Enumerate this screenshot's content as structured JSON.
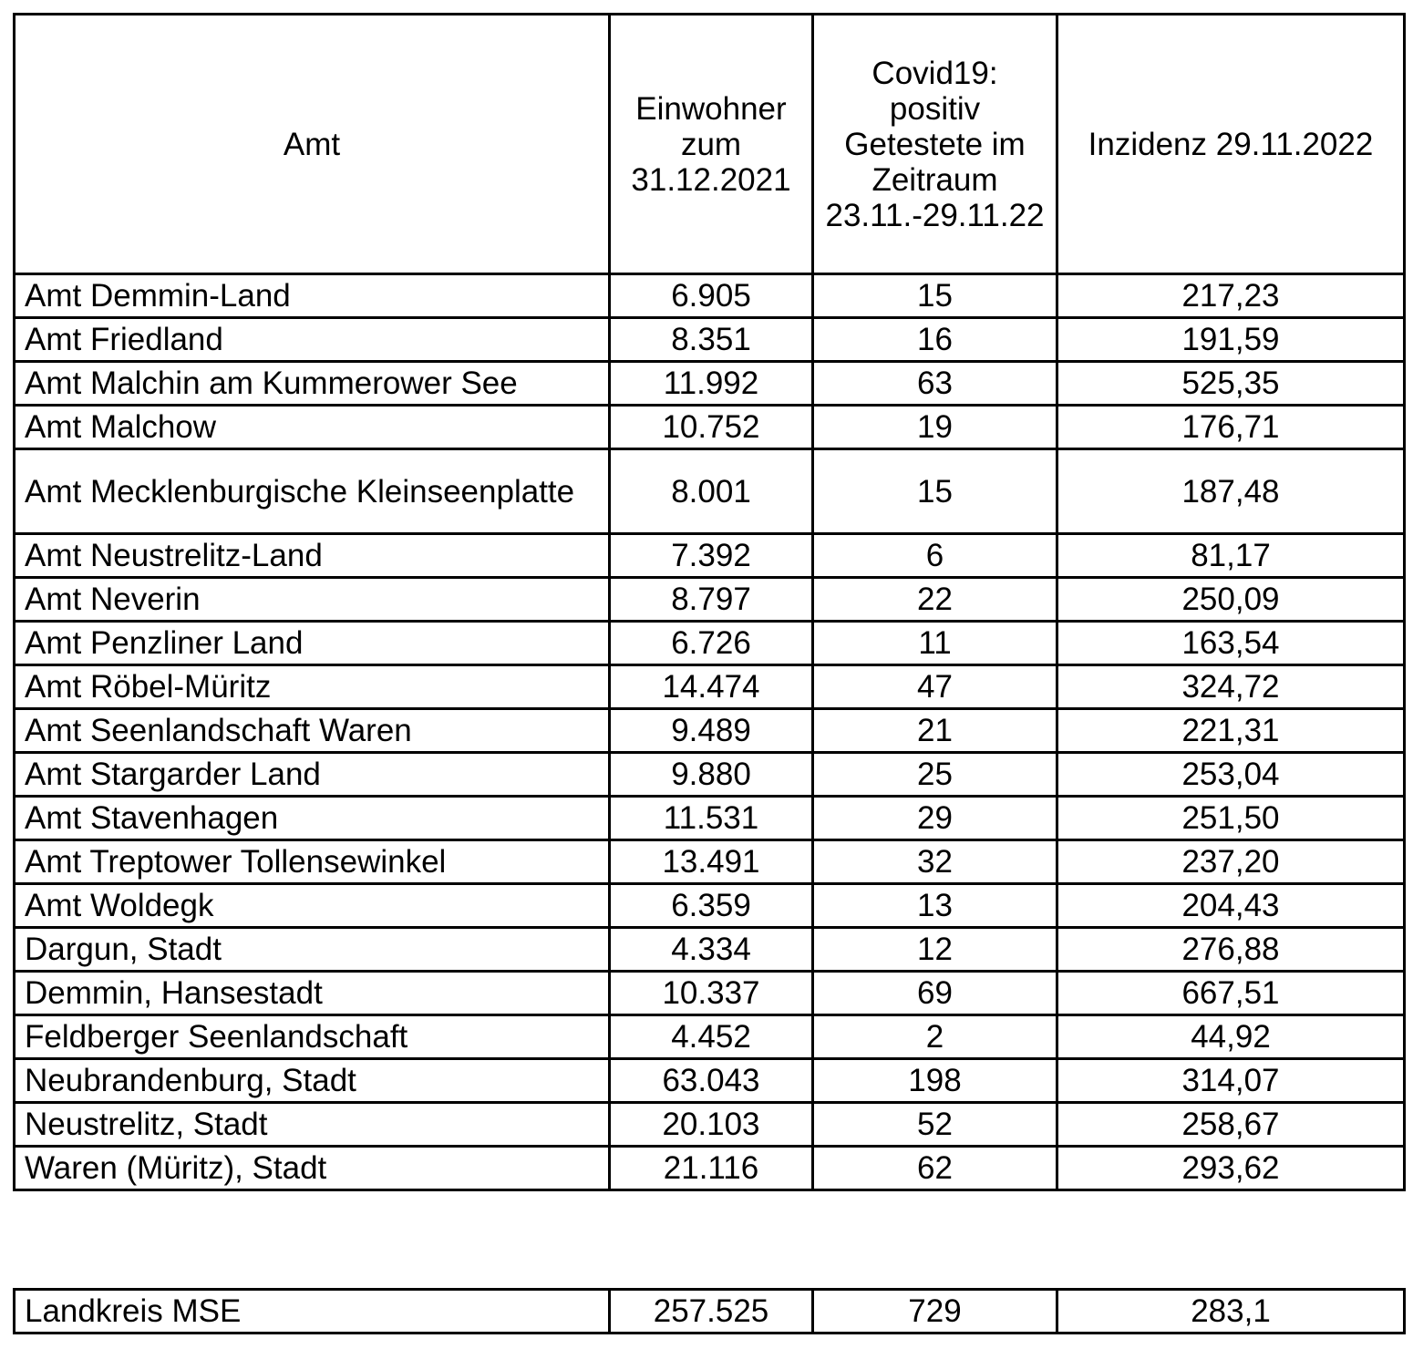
{
  "headers": {
    "amt": "Amt",
    "einwohner": "Einwohner zum 31.12.2021",
    "positiv": "Covid19: positiv Getestete im Zeitraum 23.11.-29.11.22",
    "inzidenz": "Inzidenz 29.11.2022"
  },
  "rows": [
    {
      "amt": "Amt Demmin-Land",
      "einwohner": "6.905",
      "positiv": "15",
      "inzidenz": "217,23"
    },
    {
      "amt": "Amt Friedland",
      "einwohner": "8.351",
      "positiv": "16",
      "inzidenz": "191,59"
    },
    {
      "amt": "Amt Malchin am Kummerower See",
      "einwohner": "11.992",
      "positiv": "63",
      "inzidenz": "525,35"
    },
    {
      "amt": "Amt Malchow",
      "einwohner": "10.752",
      "positiv": "19",
      "inzidenz": "176,71"
    },
    {
      "amt": "Amt Mecklenburgische Kleinseenplatte",
      "einwohner": "8.001",
      "positiv": "15",
      "inzidenz": "187,48"
    },
    {
      "amt": "Amt Neustrelitz-Land",
      "einwohner": "7.392",
      "positiv": "6",
      "inzidenz": "81,17"
    },
    {
      "amt": "Amt Neverin",
      "einwohner": "8.797",
      "positiv": "22",
      "inzidenz": "250,09"
    },
    {
      "amt": "Amt Penzliner Land",
      "einwohner": "6.726",
      "positiv": "11",
      "inzidenz": "163,54"
    },
    {
      "amt": "Amt Röbel-Müritz",
      "einwohner": "14.474",
      "positiv": "47",
      "inzidenz": "324,72"
    },
    {
      "amt": "Amt Seenlandschaft Waren",
      "einwohner": "9.489",
      "positiv": "21",
      "inzidenz": "221,31"
    },
    {
      "amt": "Amt Stargarder Land",
      "einwohner": "9.880",
      "positiv": "25",
      "inzidenz": "253,04"
    },
    {
      "amt": "Amt Stavenhagen",
      "einwohner": "11.531",
      "positiv": "29",
      "inzidenz": "251,50"
    },
    {
      "amt": "Amt Treptower Tollensewinkel",
      "einwohner": "13.491",
      "positiv": "32",
      "inzidenz": "237,20"
    },
    {
      "amt": "Amt Woldegk",
      "einwohner": "6.359",
      "positiv": "13",
      "inzidenz": "204,43"
    },
    {
      "amt": "Dargun, Stadt",
      "einwohner": "4.334",
      "positiv": "12",
      "inzidenz": "276,88"
    },
    {
      "amt": "Demmin, Hansestadt",
      "einwohner": "10.337",
      "positiv": "69",
      "inzidenz": "667,51"
    },
    {
      "amt": "Feldberger Seenlandschaft",
      "einwohner": "4.452",
      "positiv": "2",
      "inzidenz": "44,92"
    },
    {
      "amt": "Neubrandenburg, Stadt",
      "einwohner": "63.043",
      "positiv": "198",
      "inzidenz": "314,07"
    },
    {
      "amt": "Neustrelitz, Stadt",
      "einwohner": "20.103",
      "positiv": "52",
      "inzidenz": "258,67"
    },
    {
      "amt": "Waren (Müritz), Stadt",
      "einwohner": "21.116",
      "positiv": "62",
      "inzidenz": "293,62"
    }
  ],
  "summary": {
    "amt": "Landkreis MSE",
    "einwohner": "257.525",
    "positiv": "729",
    "inzidenz": "283,1"
  }
}
